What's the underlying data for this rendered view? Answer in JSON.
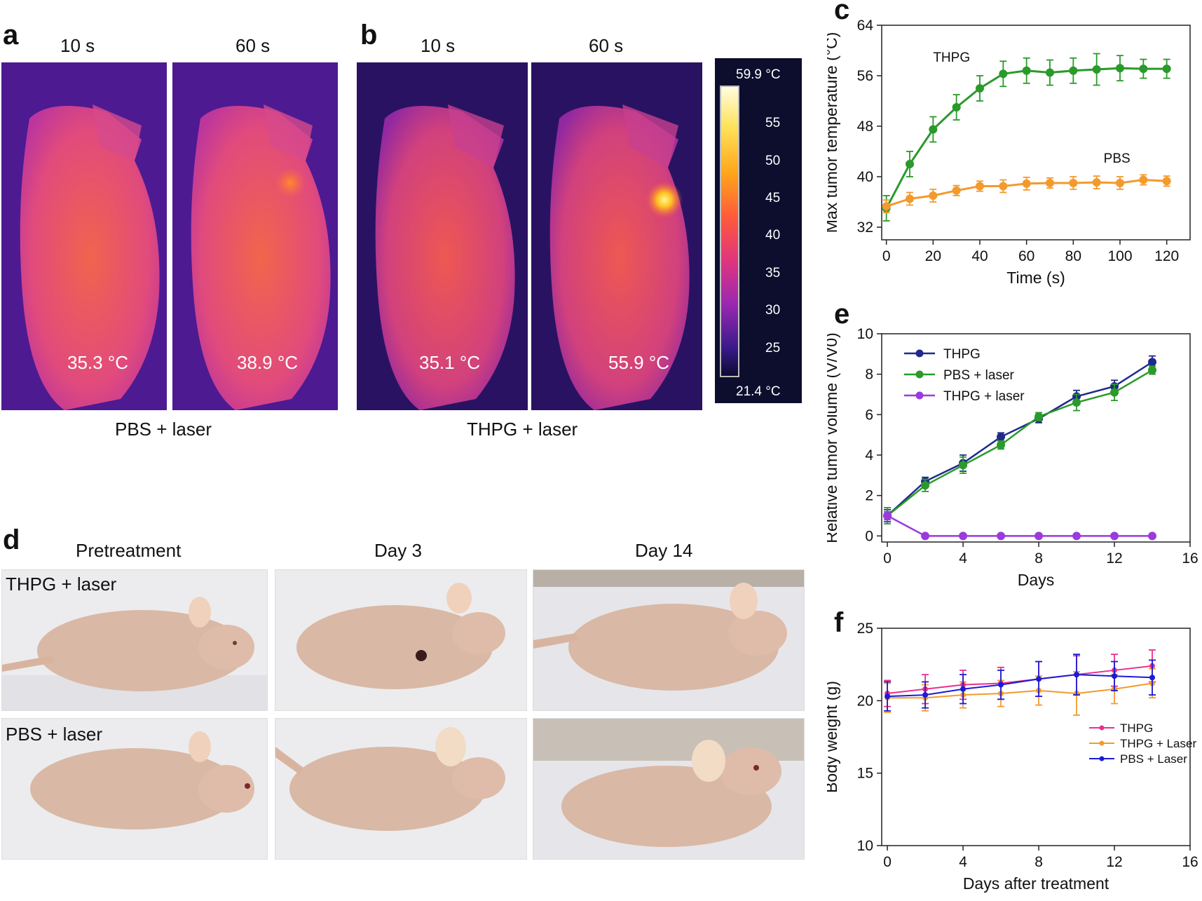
{
  "panel_a": {
    "label": "a",
    "times": [
      "10 s",
      "60 s"
    ],
    "temps": [
      "35.3 °C",
      "38.9 °C"
    ],
    "group": "PBS + laser"
  },
  "panel_b": {
    "label": "b",
    "times": [
      "10 s",
      "60 s"
    ],
    "temps": [
      "35.1 °C",
      "55.9 °C"
    ],
    "group": "THPG + laser"
  },
  "colorbar": {
    "max_label": "59.9 °C",
    "min_label": "21.4 °C",
    "ticks": [
      "55",
      "50",
      "45",
      "40",
      "35",
      "30",
      "25"
    ]
  },
  "panel_d": {
    "label": "d",
    "columns": [
      "Pretreatment",
      "Day 3",
      "Day 14"
    ],
    "rows": [
      "THPG + laser",
      "PBS + laser"
    ]
  },
  "colors": {
    "green": "#2a9a2a",
    "orange": "#f39a2c",
    "navy": "#1f2a8c",
    "purple": "#9a3bde",
    "pink": "#e8308f",
    "blue": "#1b1bd6"
  },
  "chart_data": [
    {
      "panel": "c",
      "type": "line",
      "xlabel": "Time (s)",
      "ylabel": "Max tumor temperature (°C)",
      "xlim": [
        -2,
        130
      ],
      "ylim": [
        30,
        64
      ],
      "xticks": [
        0,
        20,
        40,
        60,
        80,
        100,
        120
      ],
      "yticks": [
        32,
        40,
        48,
        56,
        64
      ],
      "x": [
        0,
        10,
        20,
        30,
        40,
        50,
        60,
        70,
        80,
        90,
        100,
        110,
        120
      ],
      "series": [
        {
          "name": "THPG",
          "color": "#2a9a2a",
          "values": [
            35.0,
            42.0,
            47.5,
            51.0,
            54.0,
            56.3,
            56.8,
            56.5,
            56.8,
            57.0,
            57.2,
            57.1,
            57.1
          ],
          "errors": [
            2.0,
            2.0,
            2.0,
            2.0,
            2.0,
            2.0,
            2.0,
            2.0,
            2.0,
            2.5,
            2.0,
            1.5,
            1.5
          ]
        },
        {
          "name": "PBS",
          "color": "#f39a2c",
          "values": [
            35.3,
            36.5,
            37.0,
            37.8,
            38.5,
            38.5,
            38.9,
            39.0,
            39.0,
            39.1,
            39.0,
            39.5,
            39.3
          ],
          "errors": [
            1.0,
            1.0,
            1.0,
            0.8,
            0.8,
            1.0,
            1.0,
            0.8,
            1.0,
            1.0,
            1.0,
            0.8,
            0.8
          ]
        }
      ],
      "annotations": [
        "THPG",
        "PBS"
      ]
    },
    {
      "panel": "e",
      "type": "line",
      "xlabel": "Days",
      "ylabel": "Relative tumor volume (V/V0)",
      "xlim": [
        -0.3,
        16
      ],
      "ylim": [
        -0.3,
        10
      ],
      "xticks": [
        0,
        4,
        8,
        12,
        16
      ],
      "yticks": [
        0,
        2,
        4,
        6,
        8,
        10
      ],
      "x": [
        0,
        2,
        4,
        6,
        8,
        10,
        12,
        14
      ],
      "series": [
        {
          "name": "THPG",
          "color": "#1f2a8c",
          "values": [
            1.0,
            2.7,
            3.6,
            4.9,
            5.8,
            6.9,
            7.4,
            8.6
          ],
          "errors": [
            0.3,
            0.2,
            0.4,
            0.2,
            0.2,
            0.3,
            0.3,
            0.3
          ]
        },
        {
          "name": "PBS + laser",
          "color": "#2a9a2a",
          "values": [
            1.0,
            2.5,
            3.5,
            4.5,
            5.9,
            6.6,
            7.1,
            8.2
          ],
          "errors": [
            0.4,
            0.3,
            0.4,
            0.2,
            0.2,
            0.4,
            0.4,
            0.2
          ]
        },
        {
          "name": "THPG + laser",
          "color": "#9a3bde",
          "values": [
            1.0,
            0.0,
            0.0,
            0.0,
            0.0,
            0.0,
            0.0,
            0.0
          ],
          "errors": [
            0.2,
            0,
            0,
            0,
            0,
            0,
            0,
            0
          ]
        }
      ],
      "legend_position": "top-left"
    },
    {
      "panel": "f",
      "type": "line",
      "xlabel": "Days after treatment",
      "ylabel": "Body weight (g)",
      "xlim": [
        -0.3,
        16
      ],
      "ylim": [
        10,
        25
      ],
      "xticks": [
        0,
        4,
        8,
        12,
        16
      ],
      "yticks": [
        10,
        15,
        20,
        25
      ],
      "x": [
        0,
        2,
        4,
        6,
        8,
        10,
        12,
        14
      ],
      "series": [
        {
          "name": "THPG",
          "color": "#e8308f",
          "values": [
            20.5,
            20.8,
            21.1,
            21.2,
            21.5,
            21.8,
            22.1,
            22.4
          ],
          "errors": [
            0.9,
            1.0,
            1.0,
            1.1,
            1.2,
            1.3,
            1.1,
            1.1
          ]
        },
        {
          "name": "THPG + Laser",
          "color": "#f39a2c",
          "values": [
            20.2,
            20.2,
            20.4,
            20.5,
            20.7,
            20.5,
            20.8,
            21.2
          ],
          "errors": [
            1.0,
            0.9,
            0.9,
            0.9,
            1.0,
            1.5,
            1.0,
            1.0
          ]
        },
        {
          "name": "PBS + Laser",
          "color": "#1b1bd6",
          "values": [
            20.3,
            20.4,
            20.8,
            21.1,
            21.5,
            21.8,
            21.7,
            21.6
          ],
          "errors": [
            1.0,
            0.9,
            1.0,
            1.0,
            1.2,
            1.4,
            1.0,
            1.2
          ]
        }
      ],
      "legend_position": "right"
    }
  ]
}
